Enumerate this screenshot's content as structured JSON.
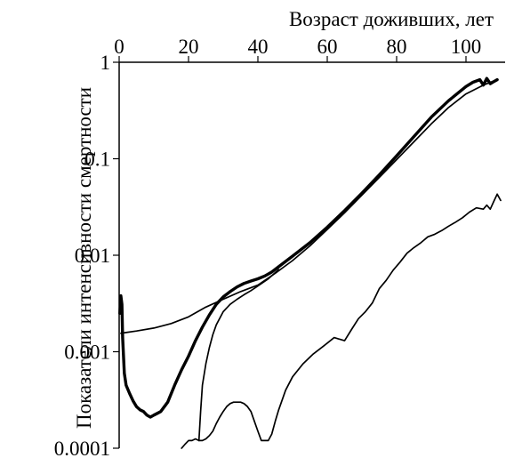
{
  "chart_data": {
    "type": "line",
    "xlabel": "Возраст доживших, лет",
    "ylabel": "Показатели интенсивности смертности",
    "x_axis_position": "top",
    "x_ticks": [
      0,
      20,
      40,
      60,
      80,
      100
    ],
    "x_tick_labels": [
      "0",
      "20",
      "40",
      "60",
      "80",
      "100"
    ],
    "y_scale": "log",
    "y_ticks": [
      1,
      0.1,
      0.01,
      0.001,
      0.0001
    ],
    "y_tick_labels": [
      "1",
      "0.1",
      "0.01",
      "0.001",
      "0.0001"
    ],
    "xlim": [
      0,
      110
    ],
    "ylim": [
      0.0001,
      1
    ],
    "grid": false,
    "legend": false,
    "series": [
      {
        "style": "thick",
        "color": "#000000",
        "x": [
          0.2,
          0.5,
          0.8,
          1,
          1.5,
          2,
          3,
          4,
          5,
          6,
          7,
          8,
          9,
          10,
          11,
          12,
          14,
          16,
          18,
          20,
          22,
          24,
          26,
          28,
          30,
          32,
          34,
          36,
          38,
          40,
          42,
          44,
          46,
          50,
          55,
          60,
          65,
          70,
          75,
          80,
          85,
          90,
          95,
          100,
          102,
          104,
          105,
          106,
          107,
          108,
          109
        ],
        "y": [
          0.0025,
          0.0038,
          0.0031,
          0.0014,
          0.0006,
          0.00045,
          0.00037,
          0.00031,
          0.00027,
          0.00025,
          0.00024,
          0.00022,
          0.00021,
          0.00022,
          0.00023,
          0.00024,
          0.0003,
          0.00045,
          0.00065,
          0.0009,
          0.0013,
          0.0018,
          0.0024,
          0.0031,
          0.0037,
          0.0042,
          0.0047,
          0.0051,
          0.0054,
          0.0057,
          0.0061,
          0.0067,
          0.0076,
          0.0098,
          0.0135,
          0.0195,
          0.029,
          0.044,
          0.068,
          0.107,
          0.17,
          0.27,
          0.4,
          0.56,
          0.62,
          0.66,
          0.58,
          0.68,
          0.6,
          0.63,
          0.66
        ]
      },
      {
        "style": "thin",
        "color": "#000000",
        "x": [
          0.5,
          2,
          5,
          10,
          15,
          20,
          25,
          30,
          35,
          40,
          45,
          50,
          55,
          60,
          65,
          70,
          75,
          80,
          85,
          90,
          95,
          100,
          105,
          109
        ],
        "y": [
          0.00155,
          0.00158,
          0.00164,
          0.00176,
          0.00196,
          0.0023,
          0.0029,
          0.0035,
          0.0042,
          0.0049,
          0.0065,
          0.0088,
          0.0125,
          0.0185,
          0.0275,
          0.042,
          0.064,
          0.098,
          0.15,
          0.23,
          0.34,
          0.47,
          0.58,
          0.66
        ]
      },
      {
        "style": "thin",
        "color": "#000000",
        "x": [
          23,
          23.5,
          24,
          25,
          26,
          27,
          28,
          30,
          32,
          34,
          36,
          38,
          40,
          43,
          46
        ],
        "y": [
          0.00012,
          0.00024,
          0.00045,
          0.00075,
          0.0011,
          0.0015,
          0.0019,
          0.0026,
          0.0031,
          0.0035,
          0.0039,
          0.0043,
          0.0048,
          0.0057,
          0.0071
        ]
      },
      {
        "style": "thin",
        "color": "#000000",
        "x": [
          18,
          19,
          20,
          21,
          22,
          23,
          24,
          25,
          26,
          27,
          28,
          29,
          30,
          31,
          32,
          33,
          34,
          35,
          36,
          37,
          38,
          39,
          40,
          41,
          42,
          43,
          44,
          45,
          46,
          48,
          50,
          53,
          56,
          59,
          62,
          65,
          67,
          69,
          71,
          73,
          75,
          77,
          79,
          81,
          83,
          85,
          87,
          89,
          91,
          93,
          95,
          97,
          99,
          101,
          103,
          105,
          106,
          107,
          108,
          109,
          110
        ],
        "y": [
          0.0001,
          0.00011,
          0.00012,
          0.00012,
          0.000125,
          0.00012,
          0.00012,
          0.000125,
          0.000135,
          0.00015,
          0.00018,
          0.00021,
          0.00024,
          0.00027,
          0.00029,
          0.0003,
          0.0003,
          0.0003,
          0.00029,
          0.00027,
          0.00024,
          0.00019,
          0.00015,
          0.00012,
          0.00012,
          0.00012,
          0.00014,
          0.00019,
          0.00025,
          0.0004,
          0.00055,
          0.00075,
          0.00095,
          0.00115,
          0.0014,
          0.0013,
          0.0017,
          0.0022,
          0.0026,
          0.0032,
          0.0045,
          0.0055,
          0.007,
          0.0085,
          0.0105,
          0.012,
          0.0135,
          0.0155,
          0.0165,
          0.018,
          0.02,
          0.022,
          0.0245,
          0.028,
          0.031,
          0.03,
          0.033,
          0.03,
          0.036,
          0.043,
          0.037
        ]
      }
    ]
  }
}
